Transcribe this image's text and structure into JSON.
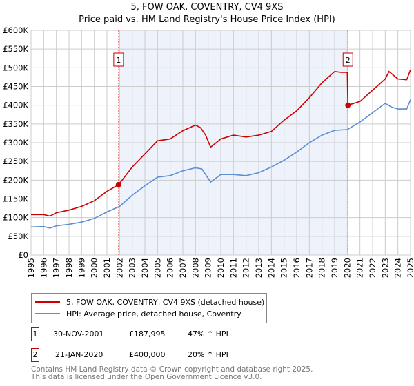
{
  "title_line1": "5, FOW OAK, COVENTRY, CV4 9XS",
  "title_line2": "Price paid vs. HM Land Registry's House Price Index (HPI)",
  "colors": {
    "property": "#cc0000",
    "hpi": "#5b8fd0",
    "shade": "#eef2fb",
    "grid": "#cccccc"
  },
  "chart_data": {
    "type": "line",
    "title": "Price paid vs. HM Land Registry's House Price Index (HPI)",
    "xlim": [
      1995,
      2025
    ],
    "ylim": [
      0,
      600000
    ],
    "x_ticks": [
      "1995",
      "1996",
      "1997",
      "1998",
      "1999",
      "2000",
      "2001",
      "2002",
      "2003",
      "2004",
      "2005",
      "2006",
      "2007",
      "2008",
      "2009",
      "2010",
      "2011",
      "2012",
      "2013",
      "2014",
      "2015",
      "2016",
      "2017",
      "2018",
      "2019",
      "2020",
      "2021",
      "2022",
      "2023",
      "2024",
      "2025"
    ],
    "y_ticks": [
      {
        "v": 0,
        "label": "£0"
      },
      {
        "v": 50000,
        "label": "£50K"
      },
      {
        "v": 100000,
        "label": "£100K"
      },
      {
        "v": 150000,
        "label": "£150K"
      },
      {
        "v": 200000,
        "label": "£200K"
      },
      {
        "v": 250000,
        "label": "£250K"
      },
      {
        "v": 300000,
        "label": "£300K"
      },
      {
        "v": 350000,
        "label": "£350K"
      },
      {
        "v": 400000,
        "label": "£400K"
      },
      {
        "v": 450000,
        "label": "£450K"
      },
      {
        "v": 500000,
        "label": "£500K"
      },
      {
        "v": 550000,
        "label": "£550K"
      },
      {
        "v": 600000,
        "label": "£600K"
      }
    ],
    "grid": true,
    "shaded_range": [
      2001.92,
      2020.05
    ],
    "series": [
      {
        "name": "5, FOW OAK, COVENTRY, CV4 9XS (detached house)",
        "color": "#cc0000",
        "x": [
          1995,
          1996,
          1996.5,
          1997,
          1998,
          1999,
          2000,
          2001,
          2001.92,
          2003,
          2004,
          2005,
          2006,
          2007,
          2008,
          2008.4,
          2008.8,
          2009.2,
          2010,
          2011,
          2012,
          2013,
          2014,
          2015,
          2016,
          2017,
          2018,
          2019,
          2019.5,
          2020.0,
          2020.05,
          2021,
          2022,
          2023,
          2023.3,
          2024,
          2024.7,
          2025
        ],
        "y": [
          108000,
          108000,
          104000,
          113000,
          120000,
          130000,
          145000,
          170000,
          187995,
          235000,
          270000,
          305000,
          310000,
          332000,
          347000,
          340000,
          320000,
          288000,
          310000,
          320000,
          315000,
          320000,
          330000,
          360000,
          385000,
          420000,
          460000,
          490000,
          488000,
          488000,
          400000,
          410000,
          440000,
          470000,
          490000,
          470000,
          468000,
          495000
        ]
      },
      {
        "name": "HPI: Average price, detached house, Coventry",
        "color": "#5b8fd0",
        "x": [
          1995,
          1996,
          1996.5,
          1997,
          1998,
          1999,
          2000,
          2001,
          2002,
          2003,
          2004,
          2005,
          2006,
          2007,
          2008,
          2008.5,
          2009.2,
          2010,
          2011,
          2012,
          2013,
          2014,
          2015,
          2016,
          2017,
          2018,
          2019,
          2020,
          2021,
          2022,
          2023,
          2023.5,
          2024,
          2024.7,
          2025
        ],
        "y": [
          75000,
          76000,
          72000,
          78000,
          82000,
          88000,
          98000,
          115000,
          130000,
          160000,
          185000,
          208000,
          212000,
          225000,
          233000,
          230000,
          195000,
          215000,
          215000,
          212000,
          220000,
          235000,
          253000,
          275000,
          300000,
          320000,
          333000,
          335000,
          355000,
          380000,
          405000,
          395000,
          390000,
          390000,
          415000
        ]
      }
    ],
    "annotations": [
      {
        "label": "1",
        "x": 2001.92,
        "y": 187995
      },
      {
        "label": "2",
        "x": 2020.05,
        "y": 400000
      }
    ]
  },
  "legend": {
    "property": "5, FOW OAK, COVENTRY, CV4 9XS (detached house)",
    "hpi": "HPI: Average price, detached house, Coventry"
  },
  "transactions": [
    {
      "num": "1",
      "date": "30-NOV-2001",
      "price": "£187,995",
      "hpi": "47% ↑ HPI"
    },
    {
      "num": "2",
      "date": "21-JAN-2020",
      "price": "£400,000",
      "hpi": "20% ↑ HPI"
    }
  ],
  "footer": {
    "line1": "Contains HM Land Registry data © Crown copyright and database right 2025.",
    "line2": "This data is licensed under the Open Government Licence v3.0."
  }
}
